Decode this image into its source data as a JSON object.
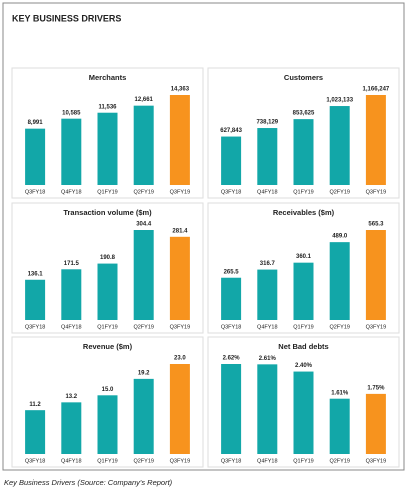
{
  "title": "KEY BUSINESS DRIVERS",
  "caption": "Key Business Drivers (Source: Company's Report)",
  "chart_data": [
    {
      "type": "bar",
      "title": "Merchants",
      "categories": [
        "Q3FY18",
        "Q4FY18",
        "Q1FY19",
        "Q2FY19",
        "Q3FY19"
      ],
      "values": [
        8991,
        10585,
        11536,
        12661,
        14363
      ],
      "value_labels": [
        "8,991",
        "10,585",
        "11,536",
        "12,661",
        "14,363"
      ],
      "colors": [
        "#12a7a8",
        "#12a7a8",
        "#12a7a8",
        "#12a7a8",
        "#f7931e"
      ]
    },
    {
      "type": "bar",
      "title": "Customers",
      "categories": [
        "Q3FY18",
        "Q4FY18",
        "Q1FY19",
        "Q2FY19",
        "Q3FY19"
      ],
      "values": [
        627843,
        738129,
        853625,
        1023133,
        1166247
      ],
      "value_labels": [
        "627,843",
        "738,129",
        "853,625",
        "1,023,133",
        "1,166,247"
      ],
      "colors": [
        "#12a7a8",
        "#12a7a8",
        "#12a7a8",
        "#12a7a8",
        "#f7931e"
      ]
    },
    {
      "type": "bar",
      "title": "Transaction volume ($m)",
      "categories": [
        "Q3FY18",
        "Q4FY18",
        "Q1FY19",
        "Q2FY19",
        "Q3FY19"
      ],
      "values": [
        136.1,
        171.5,
        190.8,
        304.4,
        281.4
      ],
      "colors": [
        "#12a7a8",
        "#12a7a8",
        "#12a7a8",
        "#12a7a8",
        "#f7931e"
      ]
    },
    {
      "type": "bar",
      "title": "Receivables ($m)",
      "categories": [
        "Q3FY18",
        "Q4FY18",
        "Q1FY19",
        "Q2FY19",
        "Q3FY19"
      ],
      "values": [
        265.5,
        316.7,
        360.1,
        489,
        565.3
      ],
      "value_labels": [
        "265.5",
        "316.7",
        "360.1",
        "489.0",
        "565.3"
      ],
      "colors": [
        "#12a7a8",
        "#12a7a8",
        "#12a7a8",
        "#12a7a8",
        "#f7931e"
      ]
    },
    {
      "type": "bar",
      "title": "Revenue ($m)",
      "categories": [
        "Q3FY18",
        "Q4FY18",
        "Q1FY19",
        "Q2FY19",
        "Q3FY19"
      ],
      "values": [
        11.2,
        13.2,
        15,
        19.2,
        23
      ],
      "value_labels": [
        "11.2",
        "13.2",
        "15.0",
        "19.2",
        "23.0"
      ],
      "colors": [
        "#12a7a8",
        "#12a7a8",
        "#12a7a8",
        "#12a7a8",
        "#f7931e"
      ]
    },
    {
      "type": "bar",
      "title": "Net Bad debts",
      "categories": [
        "Q3FY18",
        "Q4FY18",
        "Q1FY19",
        "Q2FY19",
        "Q3FY19"
      ],
      "values": [
        2.62,
        2.61,
        2.4,
        1.61,
        1.75
      ],
      "value_labels": [
        "2.62%",
        "2.61%",
        "2.40%",
        "1.61%",
        "1.75%"
      ],
      "colors": [
        "#12a7a8",
        "#12a7a8",
        "#12a7a8",
        "#12a7a8",
        "#f7931e"
      ]
    }
  ]
}
